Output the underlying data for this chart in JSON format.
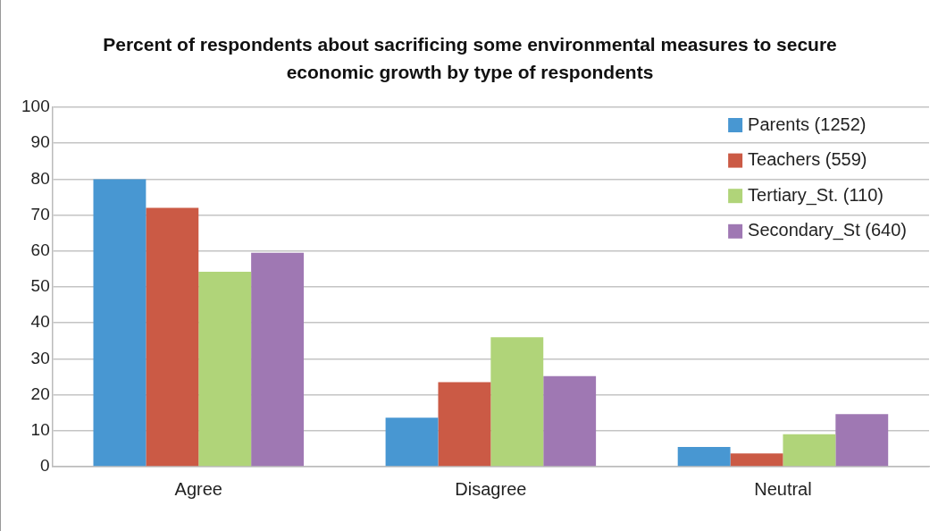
{
  "chart_data": {
    "type": "bar",
    "title": "Percent of respondents about sacrificing some environmental measures to secure economic growth by type of respondents",
    "categories": [
      "Agree",
      "Disagree",
      "Neutral"
    ],
    "series": [
      {
        "name": "Parents (1252)",
        "color": "#4897d2",
        "values": [
          80,
          13.6,
          5.5
        ]
      },
      {
        "name": "Teachers (559)",
        "color": "#cb5a45",
        "values": [
          72,
          23.5,
          3.7
        ]
      },
      {
        "name": "Tertiary_St. (110)",
        "color": "#b0d479",
        "values": [
          54.2,
          36,
          9
        ]
      },
      {
        "name": "Secondary_St (640)",
        "color": "#9f78b3",
        "values": [
          59.5,
          25.2,
          14.6
        ]
      }
    ],
    "ylim": [
      0,
      100
    ],
    "yticks": [
      0,
      10,
      20,
      30,
      40,
      50,
      60,
      70,
      80,
      90,
      100
    ],
    "grid": "y",
    "legend": "top right"
  }
}
